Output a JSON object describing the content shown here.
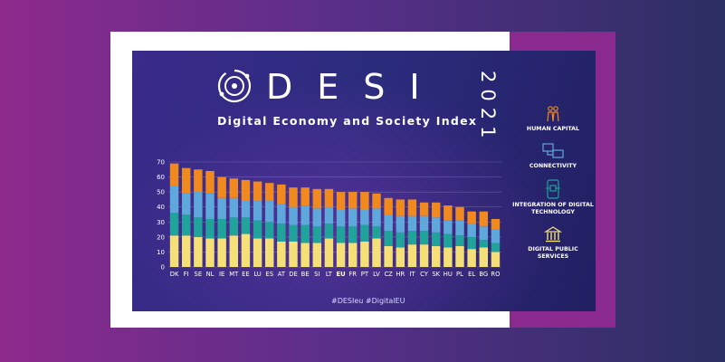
{
  "header": {
    "letters": "DESI",
    "year": "2021",
    "subtitle": "Digital Economy and Society Index"
  },
  "footer": {
    "hashtags": "#DESIeu  #DigitalEU"
  },
  "legend": [
    {
      "label": "HUMAN CAPITAL",
      "color": "#f0891e",
      "icon": "people-icon"
    },
    {
      "label": "CONNECTIVITY",
      "color": "#5fa8dc",
      "icon": "monitors-icon"
    },
    {
      "label": "INTEGRATION OF DIGITAL TECHNOLOGY",
      "color": "#20a39a",
      "icon": "phone-chip-icon"
    },
    {
      "label": "DIGITAL PUBLIC SERVICES",
      "color": "#f5df77",
      "icon": "building-icon"
    }
  ],
  "chart_data": {
    "type": "bar",
    "stacked": true,
    "categories": [
      "DK",
      "FI",
      "SE",
      "NL",
      "IE",
      "MT",
      "EE",
      "LU",
      "ES",
      "AT",
      "DE",
      "BE",
      "SI",
      "LT",
      "EU",
      "FR",
      "PT",
      "LV",
      "CZ",
      "HR",
      "IT",
      "CY",
      "SK",
      "HU",
      "PL",
      "EL",
      "BG",
      "RO"
    ],
    "highlight_category": "EU",
    "ylim": [
      0,
      70
    ],
    "yticks": [
      0,
      10,
      20,
      30,
      40,
      50,
      60,
      70
    ],
    "grid": true,
    "series": [
      {
        "name": "DIGITAL PUBLIC SERVICES",
        "color": "#f5df77",
        "values": [
          21,
          21,
          20,
          19,
          19,
          21,
          22,
          19,
          19,
          17,
          17,
          16,
          16,
          19,
          16,
          16,
          17,
          19,
          14,
          13,
          15,
          15,
          14,
          13,
          14,
          12,
          13,
          10
        ]
      },
      {
        "name": "INTEGRATION OF DIGITAL TECHNOLOGY",
        "color": "#20a39a",
        "values": [
          15,
          14,
          13,
          13,
          13,
          12,
          11,
          12,
          11,
          12,
          11,
          12,
          11,
          10,
          11,
          11,
          11,
          8,
          10,
          10,
          9,
          9,
          9,
          9,
          7,
          8,
          5,
          6
        ]
      },
      {
        "name": "CONNECTIVITY",
        "color": "#5fa8dc",
        "values": [
          18,
          14,
          17,
          17,
          14,
          13,
          11,
          13,
          14,
          13,
          12,
          13,
          12,
          11,
          11,
          12,
          10,
          12,
          11,
          11,
          10,
          10,
          10,
          9,
          10,
          9,
          9,
          9
        ]
      },
      {
        "name": "HUMAN CAPITAL",
        "color": "#f0891e",
        "values": [
          15,
          17,
          15,
          15,
          14,
          13,
          14,
          13,
          12,
          13,
          13,
          12,
          13,
          12,
          12,
          11,
          12,
          10,
          11,
          11,
          11,
          9,
          10,
          10,
          9,
          8,
          10,
          7
        ]
      }
    ]
  }
}
